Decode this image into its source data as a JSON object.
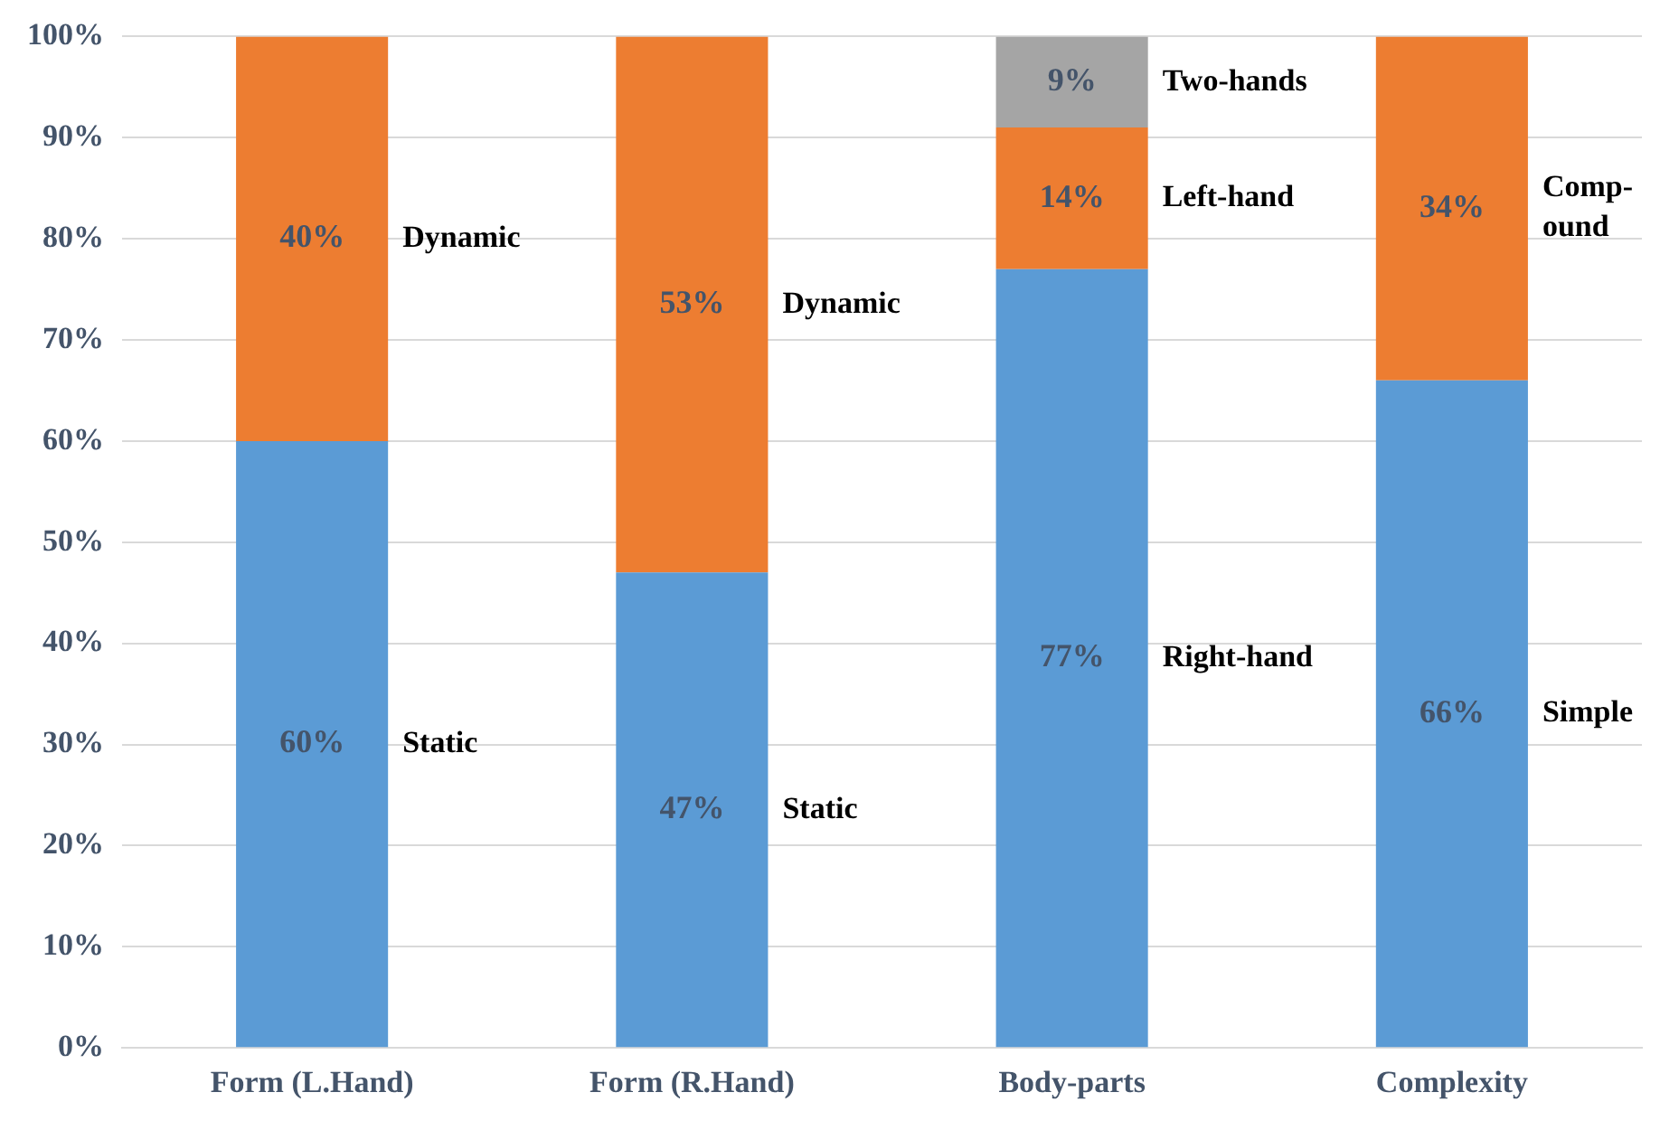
{
  "chart_data": {
    "type": "bar",
    "stacked": true,
    "categories": [
      "Form (L.Hand)",
      "Form (R.Hand)",
      "Body-parts",
      "Complexity"
    ],
    "series": [
      {
        "color": "#5b9bd5",
        "values": [
          60,
          47,
          77,
          66
        ],
        "value_labels": [
          "60%",
          "47%",
          "77%",
          "66%"
        ]
      },
      {
        "color": "#ed7d31",
        "values": [
          40,
          53,
          14,
          34
        ],
        "value_labels": [
          "40%",
          "53%",
          "14%",
          "34%"
        ]
      },
      {
        "color": "#a5a5a5",
        "values": [
          null,
          null,
          9,
          null
        ],
        "value_labels": [
          null,
          null,
          "9%",
          null
        ]
      }
    ],
    "ylim": [
      0,
      100
    ],
    "yticks": [
      {
        "value": 0,
        "label": "0%"
      },
      {
        "value": 10,
        "label": "10%"
      },
      {
        "value": 20,
        "label": "20%"
      },
      {
        "value": 30,
        "label": "30%"
      },
      {
        "value": 40,
        "label": "40%"
      },
      {
        "value": 50,
        "label": "50%"
      },
      {
        "value": 60,
        "label": "60%"
      },
      {
        "value": 70,
        "label": "70%"
      },
      {
        "value": 80,
        "label": "80%"
      },
      {
        "value": 90,
        "label": "90%"
      },
      {
        "value": 100,
        "label": "100%"
      }
    ],
    "grid": "y",
    "legend": false,
    "annotations": [
      "Static",
      "Dynamic",
      "Static",
      "Dynamic",
      "Right-hand",
      "Left-hand",
      "Two-hands",
      "Simple",
      "Comp-\nound"
    ]
  }
}
